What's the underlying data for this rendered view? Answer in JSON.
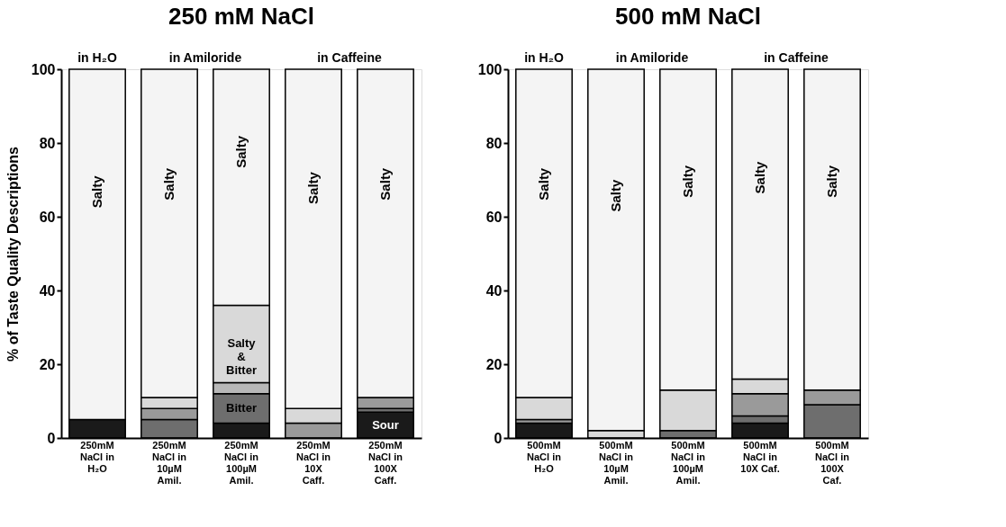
{
  "chart_data": [
    {
      "type": "bar",
      "title": "250 mM NaCl",
      "ylabel": "% of Taste Quality Descriptions",
      "stacked": true,
      "ylim": [
        0,
        100
      ],
      "yticks": [
        0,
        20,
        40,
        60,
        80,
        100
      ],
      "categories": [
        "250mM NaCl in H₂O",
        "250mM NaCl in 10µM Amil.",
        "250mM NaCl in 100µM Amil.",
        "250mM NaCl in 10X Caff.",
        "250mM NaCl in 100X Caff."
      ],
      "series": [
        {
          "color": "#1a1a1a",
          "values": [
            5,
            null,
            4,
            null,
            7
          ]
        },
        {
          "color": "#6e6e6e",
          "values": [
            null,
            5,
            8,
            null,
            1
          ]
        },
        {
          "color": "#9a9a9a",
          "values": [
            null,
            3,
            null,
            4,
            3
          ]
        },
        {
          "color": "#b8b8b8",
          "values": [
            null,
            null,
            3,
            null,
            null
          ]
        },
        {
          "color": "#d9d9d9",
          "values": [
            null,
            3,
            21,
            4,
            null
          ]
        },
        {
          "name": "Salty",
          "color": "#f4f4f4",
          "values": [
            95,
            89,
            64,
            92,
            89
          ]
        }
      ],
      "annotations": [
        "in H₂O",
        "in Amiloride",
        "in Caffeine",
        {
          "text": "Salty & Bitter",
          "x": "250mM NaCl in 100µM Amil.",
          "y": 36
        },
        {
          "text": "Bitter",
          "x": "250mM NaCl in 100µM Amil.",
          "y": 12
        },
        {
          "text": "Sour",
          "x": "250mM NaCl in 100X Caff.",
          "y": 7
        }
      ]
    },
    {
      "type": "bar",
      "title": "500 mM NaCl",
      "stacked": true,
      "ylim": [
        0,
        100
      ],
      "yticks": [
        0,
        20,
        40,
        60,
        80,
        100
      ],
      "categories": [
        "500mM NaCl in H₂O",
        "500mM NaCl in 10µM Amil.",
        "500mM NaCl in 100µM Amil.",
        "500mM NaCl in 10X Caf.",
        "500mM NaCl in 100X Caf."
      ],
      "series": [
        {
          "color": "#1a1a1a",
          "values": [
            4,
            null,
            null,
            4,
            null
          ]
        },
        {
          "color": "#6e6e6e",
          "values": [
            null,
            null,
            2,
            2,
            9
          ]
        },
        {
          "color": "#9a9a9a",
          "values": [
            1,
            null,
            null,
            6,
            4
          ]
        },
        {
          "color": "#d9d9d9",
          "values": [
            6,
            2,
            11,
            4,
            null
          ]
        },
        {
          "name": "Salty",
          "color": "#f4f4f4",
          "values": [
            89,
            98,
            87,
            84,
            87
          ]
        }
      ],
      "annotations": [
        "in H₂O",
        "in Amiloride",
        "in Caffeine"
      ]
    }
  ]
}
